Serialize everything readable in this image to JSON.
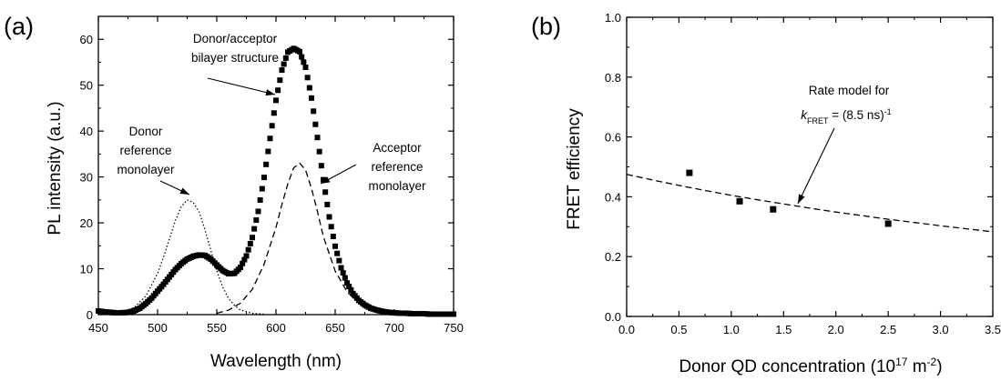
{
  "chart_data": [
    {
      "type": "scatter",
      "panel_label": "(a)",
      "xlabel": "Wavelength (nm)",
      "ylabel": "PL intensity (a.u.)",
      "xlim": [
        450,
        750
      ],
      "ylim": [
        0,
        65
      ],
      "x_ticks": [
        450,
        500,
        550,
        600,
        650,
        700,
        750
      ],
      "y_ticks": [
        0,
        10,
        20,
        30,
        40,
        50,
        60
      ],
      "grid": false,
      "legend": "none",
      "series": [
        {
          "style": "square-markers",
          "x": [
            450,
            455,
            460,
            465,
            470,
            475,
            480,
            485,
            490,
            495,
            500,
            505,
            510,
            515,
            520,
            525,
            530,
            535,
            540,
            545,
            550,
            555,
            560,
            565,
            570,
            575,
            580,
            585,
            590,
            595,
            600,
            605,
            610,
            615,
            620,
            625,
            630,
            635,
            640,
            645,
            650,
            655,
            660,
            665,
            670,
            675,
            680,
            685,
            690,
            695,
            700,
            705,
            710,
            715,
            720,
            725,
            730,
            735,
            740,
            745,
            750
          ],
          "y": [
            0.8,
            0.6,
            0.5,
            0.4,
            0.4,
            0.5,
            0.8,
            1.4,
            2.4,
            3.6,
            5.1,
            6.6,
            8.2,
            9.8,
            11.1,
            12.1,
            12.7,
            13.0,
            12.9,
            12.1,
            10.8,
            9.6,
            8.9,
            9.0,
            10.3,
            12.8,
            16.8,
            22.5,
            29.9,
            38.4,
            46.7,
            53.3,
            57.2,
            58.0,
            57.3,
            53.9,
            47.2,
            38.6,
            29.4,
            21.3,
            14.9,
            10.2,
            6.9,
            4.6,
            3.1,
            2.1,
            1.4,
            1.0,
            0.7,
            0.5,
            0.4,
            0.3,
            0.3,
            0.2,
            0.2,
            0.2,
            0.1,
            0.1,
            0.1,
            0.1,
            0.1
          ]
        },
        {
          "style": "dotted-line",
          "x": [
            470,
            480,
            490,
            500,
            505,
            510,
            515,
            520,
            525,
            530,
            535,
            540,
            545,
            550,
            555,
            560,
            565,
            570,
            580,
            590
          ],
          "y": [
            0.5,
            1.5,
            4.0,
            9.0,
            12.5,
            16.5,
            20.5,
            23.5,
            25.0,
            24.5,
            22.5,
            18.5,
            14.0,
            9.5,
            6.0,
            3.5,
            2.0,
            1.0,
            0.3,
            0.1
          ]
        },
        {
          "style": "dashed-line",
          "x": [
            550,
            560,
            570,
            580,
            590,
            600,
            605,
            610,
            615,
            620,
            625,
            630,
            635,
            640,
            650,
            660,
            670,
            680,
            690,
            700
          ],
          "y": [
            0.3,
            1.0,
            2.5,
            5.5,
            11.0,
            19.0,
            24.0,
            28.5,
            32.0,
            33.0,
            31.5,
            27.5,
            22.5,
            17.0,
            9.5,
            5.0,
            2.5,
            1.2,
            0.5,
            0.2
          ]
        }
      ],
      "annotations": [
        {
          "lines": [
            "Donor/acceptor",
            "bilayer structure"
          ]
        },
        {
          "lines": [
            "Donor",
            "reference",
            "monolayer"
          ]
        },
        {
          "lines": [
            "Acceptor",
            "reference",
            "monolayer"
          ]
        }
      ]
    },
    {
      "type": "scatter",
      "panel_label": "(b)",
      "xlabel": "Donor QD concentration (10",
      "xlabel_sup": "17",
      "xlabel_mid": " m",
      "xlabel_sup2": "-2",
      "xlabel_end": ")",
      "ylabel": "FRET efficiency",
      "xlim": [
        0.0,
        3.5
      ],
      "ylim": [
        0.0,
        1.0
      ],
      "x_ticks": [
        "0.0",
        "0.5",
        "1.0",
        "1.5",
        "2.0",
        "2.5",
        "3.0",
        "3.5"
      ],
      "y_ticks": [
        "0.0",
        "0.2",
        "0.4",
        "0.6",
        "0.8",
        "1.0"
      ],
      "grid": false,
      "legend": "none",
      "points": {
        "x": [
          0.6,
          1.08,
          1.4,
          2.5
        ],
        "y": [
          0.48,
          0.385,
          0.358,
          0.31
        ]
      },
      "model_curve": {
        "style": "dashed-line",
        "x": [
          0.0,
          0.25,
          0.5,
          0.75,
          1.0,
          1.25,
          1.5,
          1.75,
          2.0,
          2.25,
          2.5,
          2.75,
          3.0,
          3.25,
          3.5
        ],
        "y": [
          0.475,
          0.456,
          0.438,
          0.421,
          0.405,
          0.39,
          0.376,
          0.362,
          0.349,
          0.337,
          0.325,
          0.314,
          0.303,
          0.293,
          0.283
        ]
      },
      "annotation": {
        "line1": "Rate model for",
        "k_symbol": "k",
        "k_sub": "FRET",
        "equals": " = (8.5 ns)",
        "exp": "-1"
      }
    }
  ]
}
